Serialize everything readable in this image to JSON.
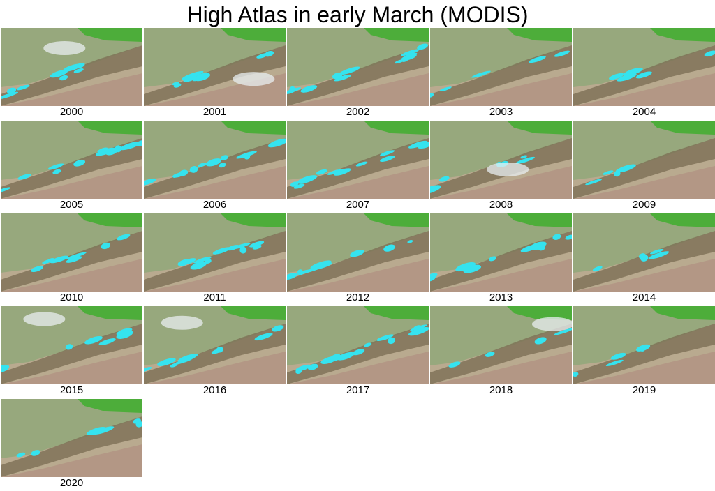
{
  "title": "High Atlas in early March (MODIS)",
  "panels": [
    "2000",
    "2001",
    "2002",
    "2003",
    "2004",
    "2005",
    "2006",
    "2007",
    "2008",
    "2009",
    "2010",
    "2011",
    "2012",
    "2013",
    "2014",
    "2015",
    "2016",
    "2017",
    "2018",
    "2019",
    "2020"
  ]
}
